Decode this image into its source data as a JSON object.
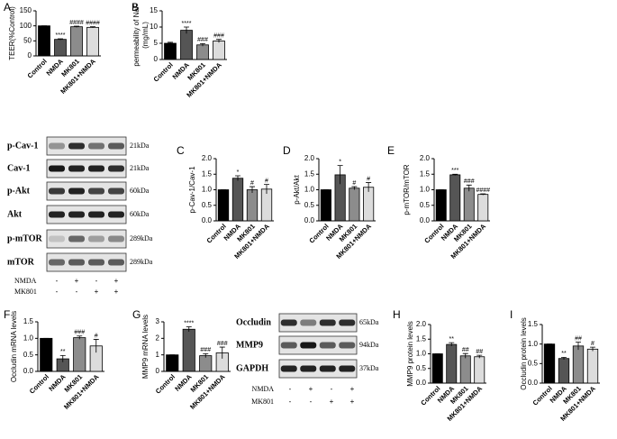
{
  "chart_data": [
    {
      "type": "bar",
      "panel": "A",
      "ylabel": "TEER(%Control)",
      "categories": [
        "Control",
        "NMDA",
        "MK801",
        "MK801+NMDA"
      ],
      "values": [
        100,
        55,
        97,
        95
      ],
      "errors": [
        0,
        2,
        2,
        2
      ],
      "annotations": [
        null,
        "****",
        "####",
        "####"
      ],
      "colors": [
        "#000000",
        "#555555",
        "#8c8c8c",
        "#dcdcdc"
      ],
      "ylim": [
        0,
        150
      ],
      "yticks": [
        0,
        50,
        100,
        150
      ]
    },
    {
      "type": "bar",
      "panel": "B",
      "ylabel": [
        "permeability of NaF",
        "(mg/mL)"
      ],
      "categories": [
        "Control",
        "NMDA",
        "MK801",
        "MK801+NMDA"
      ],
      "values": [
        5,
        9,
        4.5,
        5.7
      ],
      "errors": [
        0.3,
        1,
        0.4,
        0.5
      ],
      "annotations": [
        null,
        "****",
        "###",
        "###"
      ],
      "colors": [
        "#000000",
        "#555555",
        "#8c8c8c",
        "#dcdcdc"
      ],
      "ylim": [
        0,
        15
      ],
      "yticks": [
        0,
        5,
        10,
        15
      ]
    },
    {
      "type": "bar",
      "panel": "C",
      "ylabel": "p-Cav-1/Cav-1",
      "categories": [
        "Control",
        "NMDA",
        "MK801",
        "MK801+NMDA"
      ],
      "values": [
        1.0,
        1.37,
        1.0,
        1.02
      ],
      "errors": [
        0,
        0.08,
        0.1,
        0.15
      ],
      "annotations": [
        null,
        "*",
        "#",
        "#"
      ],
      "colors": [
        "#000000",
        "#555555",
        "#8c8c8c",
        "#dcdcdc"
      ],
      "ylim": [
        0,
        2
      ],
      "yticks": [
        {
          "value": 0,
          "label": "0.0"
        },
        0.5,
        {
          "value": 1,
          "label": "1.0"
        },
        1.5,
        {
          "value": 2,
          "label": "2.0"
        }
      ]
    },
    {
      "type": "bar",
      "panel": "D",
      "ylabel": "p-Akt/Akt",
      "categories": [
        "Control",
        "NMDA",
        "MK801",
        "MK801+NMDA"
      ],
      "values": [
        1.0,
        1.48,
        1.05,
        1.08
      ],
      "errors": [
        0,
        0.3,
        0.05,
        0.15
      ],
      "annotations": [
        null,
        "*",
        "#",
        "#"
      ],
      "colors": [
        "#000000",
        "#555555",
        "#8c8c8c",
        "#dcdcdc"
      ],
      "ylim": [
        0,
        2
      ],
      "yticks": [
        {
          "value": 0,
          "label": "0.0"
        },
        0.5,
        {
          "value": 1,
          "label": "1.0"
        },
        1.5,
        {
          "value": 2,
          "label": "2.0"
        }
      ]
    },
    {
      "type": "bar",
      "panel": "E",
      "ylabel": "p-mTOR/mTOR",
      "categories": [
        "Control",
        "NMDA",
        "MK801",
        "MK801+NMDA"
      ],
      "values": [
        1.0,
        1.48,
        1.05,
        0.85
      ],
      "errors": [
        0,
        0.02,
        0.1,
        0.02
      ],
      "annotations": [
        null,
        "***",
        "###",
        "####"
      ],
      "colors": [
        "#000000",
        "#555555",
        "#8c8c8c",
        "#dcdcdc"
      ],
      "ylim": [
        0,
        2
      ],
      "yticks": [
        {
          "value": 0,
          "label": "0.0"
        },
        0.5,
        {
          "value": 1,
          "label": "1.0"
        },
        1.5,
        {
          "value": 2,
          "label": "2.0"
        }
      ]
    },
    {
      "type": "bar",
      "panel": "F",
      "ylabel": "Occludin mRNA levels",
      "categories": [
        "Control",
        "NMDA",
        "MK801",
        "MK801+NMDA"
      ],
      "values": [
        1.0,
        0.38,
        1.02,
        0.77
      ],
      "errors": [
        0,
        0.1,
        0.05,
        0.2
      ],
      "annotations": [
        null,
        "**",
        "###",
        "#"
      ],
      "colors": [
        "#000000",
        "#555555",
        "#8c8c8c",
        "#dcdcdc"
      ],
      "ylim": [
        0,
        1.5
      ],
      "yticks": [
        {
          "value": 0,
          "label": "0.0"
        },
        0.5,
        {
          "value": 1,
          "label": "1.0"
        },
        1.5
      ]
    },
    {
      "type": "bar",
      "panel": "G",
      "ylabel": "MMP9 mRNA levels",
      "categories": [
        "Control",
        "NMDA",
        "MK801",
        "MK801+NMDA"
      ],
      "values": [
        1.0,
        2.55,
        0.95,
        1.12
      ],
      "errors": [
        0,
        0.15,
        0.12,
        0.35
      ],
      "annotations": [
        null,
        "****",
        "###",
        "###"
      ],
      "colors": [
        "#000000",
        "#555555",
        "#8c8c8c",
        "#dcdcdc"
      ],
      "ylim": [
        0,
        3
      ],
      "yticks": [
        0,
        1,
        2,
        3
      ]
    },
    {
      "type": "bar",
      "panel": "H",
      "ylabel": "MMP9 protein levels",
      "categories": [
        "Control",
        "NMDA",
        "MK801",
        "MK801+NMDA"
      ],
      "values": [
        1.0,
        1.32,
        0.93,
        0.9
      ],
      "errors": [
        0,
        0.06,
        0.08,
        0.05
      ],
      "annotations": [
        null,
        "**",
        "##",
        "##"
      ],
      "colors": [
        "#000000",
        "#555555",
        "#8c8c8c",
        "#dcdcdc"
      ],
      "ylim": [
        0,
        2
      ],
      "yticks": [
        {
          "value": 0,
          "label": "0.0"
        },
        0.5,
        {
          "value": 1,
          "label": "1.0"
        },
        1.5,
        {
          "value": 2,
          "label": "2.0"
        }
      ]
    },
    {
      "type": "bar",
      "panel": "I",
      "ylabel": "Occludin protein levels",
      "categories": [
        "Control",
        "NMDA",
        "MK801",
        "MK801+NMDA"
      ],
      "values": [
        1.0,
        0.63,
        0.95,
        0.87
      ],
      "errors": [
        0,
        0.03,
        0.1,
        0.05
      ],
      "annotations": [
        null,
        "**",
        "##",
        "#"
      ],
      "colors": [
        "#000000",
        "#555555",
        "#8c8c8c",
        "#dcdcdc"
      ],
      "ylim": [
        0,
        1.5
      ],
      "yticks": [
        {
          "value": 0,
          "label": "0.0"
        },
        0.5,
        {
          "value": 1,
          "label": "1.0"
        },
        1.5
      ]
    }
  ],
  "blots": [
    {
      "rows": [
        {
          "label": "p-Cav-1",
          "size": "21kDa"
        },
        {
          "label": "Cav-1",
          "size": "21kDa"
        },
        {
          "label": "p-Akt",
          "size": "60kDa"
        },
        {
          "label": "Akt",
          "size": "60kDa"
        },
        {
          "label": "p-mTOR",
          "size": "289kDa"
        },
        {
          "label": "mTOR",
          "size": "289kDa"
        }
      ],
      "treatments": [
        {
          "label": "NMDA",
          "signs": [
            "-",
            "+",
            "-",
            "+"
          ]
        },
        {
          "label": "MK801",
          "signs": [
            "-",
            "-",
            "+",
            "+"
          ]
        }
      ]
    },
    {
      "rows": [
        {
          "label": "Occludin",
          "size": "65kDa"
        },
        {
          "label": "MMP9",
          "size": "94kDa"
        },
        {
          "label": "GAPDH",
          "size": "37kDa"
        }
      ],
      "treatments": [
        {
          "label": "NMDA",
          "signs": [
            "-",
            "+",
            "-",
            "+"
          ]
        },
        {
          "label": "MK801",
          "signs": [
            "-",
            "-",
            "+",
            "+"
          ]
        }
      ]
    }
  ]
}
